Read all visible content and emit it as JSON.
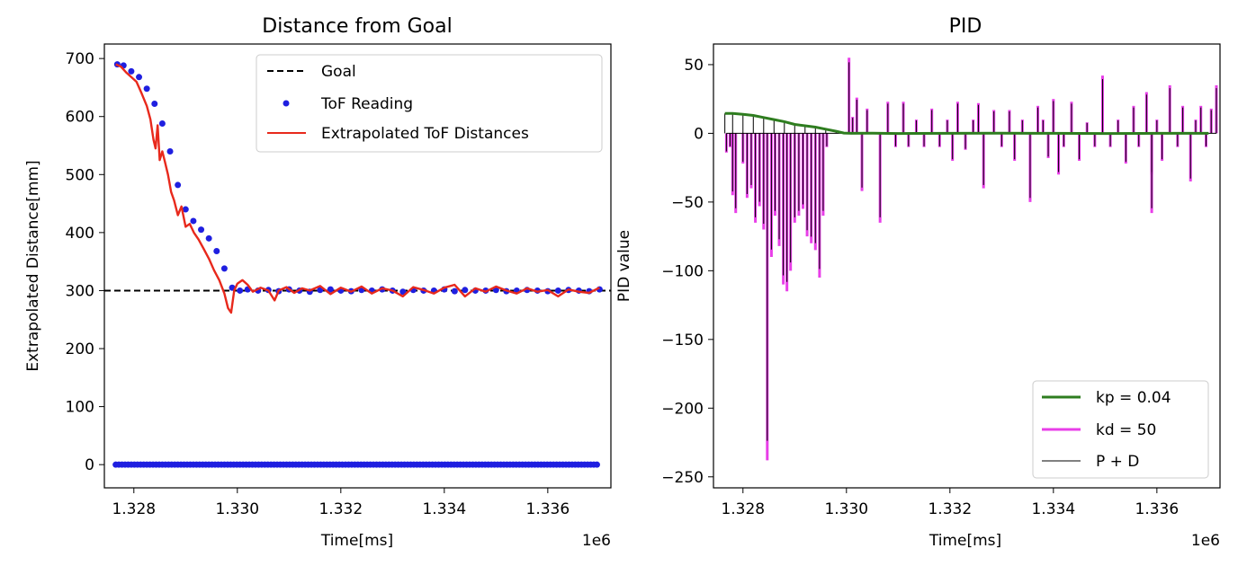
{
  "chart_data": [
    {
      "type": "line",
      "title": "Distance from Goal",
      "xlabel": "Time[ms]",
      "ylabel": "Extrapolated Distance[mm]",
      "x_offset_label": "1e6",
      "xlim": [
        1.32743,
        1.33722
      ],
      "ylim": [
        -40,
        725
      ],
      "xticks": [
        1.328,
        1.33,
        1.332,
        1.334,
        1.336
      ],
      "xtick_labels": [
        "1.328",
        "1.330",
        "1.332",
        "1.334",
        "1.336"
      ],
      "yticks": [
        0,
        100,
        200,
        300,
        400,
        500,
        600,
        700
      ],
      "ytick_labels": [
        "0",
        "100",
        "200",
        "300",
        "400",
        "500",
        "600",
        "700"
      ],
      "grid": false,
      "legend_position": "top-right",
      "goal": 300,
      "tof_zero_range": [
        1.32765,
        1.337
      ],
      "series": [
        {
          "name": "Goal",
          "style": "dashed",
          "color": "#000000",
          "x": [
            1.32743,
            1.33722
          ],
          "y": [
            300,
            300
          ]
        },
        {
          "name": "ToF Reading",
          "style": "scatter",
          "color": "#1f1fe0",
          "x": [
            1.32768,
            1.3278,
            1.32795,
            1.3281,
            1.32825,
            1.3284,
            1.32855,
            1.3287,
            1.32885,
            1.329,
            1.32915,
            1.3293,
            1.32945,
            1.3296,
            1.32975,
            1.3299,
            1.33005,
            1.3302,
            1.3304,
            1.3306,
            1.3308,
            1.331,
            1.3312,
            1.3314,
            1.3316,
            1.3318,
            1.332,
            1.3322,
            1.3324,
            1.3326,
            1.3328,
            1.333,
            1.3332,
            1.3334,
            1.3336,
            1.3338,
            1.334,
            1.3342,
            1.3344,
            1.3346,
            1.3348,
            1.335,
            1.3352,
            1.3354,
            1.3356,
            1.3358,
            1.336,
            1.3362,
            1.3364,
            1.3366,
            1.3368,
            1.337
          ],
          "y": [
            690,
            688,
            678,
            668,
            648,
            622,
            588,
            540,
            482,
            440,
            420,
            405,
            390,
            368,
            338,
            305,
            300,
            302,
            300,
            301,
            299,
            302,
            300,
            298,
            301,
            302,
            300,
            299,
            301,
            300,
            302,
            300,
            298,
            301,
            300,
            300,
            302,
            299,
            301,
            300,
            300,
            301,
            299,
            300,
            301,
            300,
            299,
            300,
            301,
            300,
            299,
            302
          ]
        },
        {
          "name": "Extrapolated ToF Distances",
          "style": "line",
          "color": "#e8291c",
          "x": [
            1.32765,
            1.32775,
            1.32785,
            1.32795,
            1.32805,
            1.32815,
            1.32825,
            1.32832,
            1.32838,
            1.32842,
            1.32846,
            1.3285,
            1.32855,
            1.3286,
            1.32866,
            1.32872,
            1.32878,
            1.32885,
            1.32892,
            1.329,
            1.32908,
            1.32916,
            1.32925,
            1.32935,
            1.32945,
            1.32955,
            1.32965,
            1.32975,
            1.32982,
            1.32988,
            1.32994,
            1.33,
            1.3301,
            1.3302,
            1.3303,
            1.33045,
            1.3306,
            1.33072,
            1.3308,
            1.33095,
            1.3311,
            1.33125,
            1.3314,
            1.3316,
            1.3318,
            1.332,
            1.3322,
            1.3324,
            1.3326,
            1.3328,
            1.333,
            1.3332,
            1.3334,
            1.3336,
            1.3338,
            1.334,
            1.3342,
            1.3344,
            1.3346,
            1.3348,
            1.335,
            1.3352,
            1.3354,
            1.3356,
            1.3358,
            1.336,
            1.3362,
            1.3364,
            1.3366,
            1.3368,
            1.337
          ],
          "y": [
            690,
            686,
            676,
            668,
            660,
            640,
            618,
            595,
            560,
            545,
            585,
            525,
            540,
            522,
            500,
            470,
            455,
            430,
            445,
            410,
            415,
            400,
            388,
            372,
            355,
            335,
            318,
            295,
            270,
            262,
            300,
            312,
            318,
            310,
            298,
            305,
            300,
            283,
            300,
            306,
            296,
            304,
            300,
            308,
            294,
            305,
            298,
            307,
            295,
            304,
            300,
            290,
            306,
            301,
            295,
            305,
            310,
            290,
            304,
            298,
            307,
            300,
            295,
            304,
            298,
            301,
            290,
            302,
            298,
            296,
            305
          ]
        }
      ]
    },
    {
      "type": "line",
      "title": "PID",
      "xlabel": "Time[ms]",
      "ylabel": "PID value",
      "x_offset_label": "1e6",
      "xlim": [
        1.32743,
        1.33722
      ],
      "ylim": [
        -258,
        65
      ],
      "xticks": [
        1.328,
        1.33,
        1.332,
        1.334,
        1.336
      ],
      "xtick_labels": [
        "1.328",
        "1.330",
        "1.332",
        "1.334",
        "1.336"
      ],
      "yticks": [
        50,
        0,
        -50,
        -100,
        -150,
        -200,
        -250
      ],
      "ytick_labels": [
        "50",
        "0",
        "−50",
        "−100",
        "−150",
        "−200",
        "−250"
      ],
      "grid": false,
      "legend_position": "bottom-right",
      "series": [
        {
          "name": "kp = 0.04",
          "color": "#2e7d1f",
          "x": [
            1.32765,
            1.3278,
            1.328,
            1.3282,
            1.3284,
            1.3286,
            1.3288,
            1.329,
            1.3292,
            1.3294,
            1.3296,
            1.3298,
            1.32995,
            1.3301,
            1.3305,
            1.331,
            1.332,
            1.333,
            1.334,
            1.335,
            1.336,
            1.337
          ],
          "y": [
            14.5,
            14.5,
            13.8,
            13.0,
            11.5,
            10.0,
            8.5,
            6.5,
            5.5,
            4.5,
            3.0,
            1.5,
            0.2,
            0.0,
            0.1,
            -0.1,
            0.0,
            0.1,
            0.0,
            -0.1,
            0.0,
            0.0
          ]
        },
        {
          "name": "kd = 50",
          "color": "#e83ee8",
          "spikes": [
            {
              "x": 1.32768,
              "y": -14
            },
            {
              "x": 1.32775,
              "y": -10
            },
            {
              "x": 1.3278,
              "y": -45
            },
            {
              "x": 1.32786,
              "y": -58
            },
            {
              "x": 1.328,
              "y": -22
            },
            {
              "x": 1.32808,
              "y": -47
            },
            {
              "x": 1.32816,
              "y": -40
            },
            {
              "x": 1.32824,
              "y": -65
            },
            {
              "x": 1.32832,
              "y": -53
            },
            {
              "x": 1.3284,
              "y": -70
            },
            {
              "x": 1.32847,
              "y": -238
            },
            {
              "x": 1.32855,
              "y": -90
            },
            {
              "x": 1.32862,
              "y": -60
            },
            {
              "x": 1.3287,
              "y": -82
            },
            {
              "x": 1.32878,
              "y": -110
            },
            {
              "x": 1.32885,
              "y": -115
            },
            {
              "x": 1.32892,
              "y": -100
            },
            {
              "x": 1.329,
              "y": -65
            },
            {
              "x": 1.32908,
              "y": -60
            },
            {
              "x": 1.32916,
              "y": -55
            },
            {
              "x": 1.32924,
              "y": -75
            },
            {
              "x": 1.32932,
              "y": -80
            },
            {
              "x": 1.3294,
              "y": -85
            },
            {
              "x": 1.32948,
              "y": -105
            },
            {
              "x": 1.32955,
              "y": -60
            },
            {
              "x": 1.32962,
              "y": -10
            },
            {
              "x": 1.33005,
              "y": 55
            },
            {
              "x": 1.33012,
              "y": 12
            },
            {
              "x": 1.3302,
              "y": 26
            },
            {
              "x": 1.3303,
              "y": -42
            },
            {
              "x": 1.3304,
              "y": 18
            },
            {
              "x": 1.33055,
              "y": 0
            },
            {
              "x": 1.33065,
              "y": -65
            },
            {
              "x": 1.3308,
              "y": 23
            },
            {
              "x": 1.33095,
              "y": -10
            },
            {
              "x": 1.3311,
              "y": 23
            },
            {
              "x": 1.3312,
              "y": -10
            },
            {
              "x": 1.33135,
              "y": 10
            },
            {
              "x": 1.3315,
              "y": -10
            },
            {
              "x": 1.33165,
              "y": 18
            },
            {
              "x": 1.3318,
              "y": -10
            },
            {
              "x": 1.33195,
              "y": 10
            },
            {
              "x": 1.33205,
              "y": -20
            },
            {
              "x": 1.33215,
              "y": 23
            },
            {
              "x": 1.3323,
              "y": -12
            },
            {
              "x": 1.33245,
              "y": 10
            },
            {
              "x": 1.33255,
              "y": 22
            },
            {
              "x": 1.33265,
              "y": -40
            },
            {
              "x": 1.33285,
              "y": 17
            },
            {
              "x": 1.333,
              "y": -10
            },
            {
              "x": 1.33315,
              "y": 17
            },
            {
              "x": 1.33325,
              "y": -20
            },
            {
              "x": 1.3334,
              "y": 10
            },
            {
              "x": 1.33355,
              "y": -50
            },
            {
              "x": 1.3337,
              "y": 20
            },
            {
              "x": 1.3338,
              "y": 10
            },
            {
              "x": 1.3339,
              "y": -18
            },
            {
              "x": 1.334,
              "y": 25
            },
            {
              "x": 1.3341,
              "y": -30
            },
            {
              "x": 1.3342,
              "y": -10
            },
            {
              "x": 1.33435,
              "y": 23
            },
            {
              "x": 1.3345,
              "y": -20
            },
            {
              "x": 1.33465,
              "y": 8
            },
            {
              "x": 1.3348,
              "y": -10
            },
            {
              "x": 1.33495,
              "y": 42
            },
            {
              "x": 1.3351,
              "y": -10
            },
            {
              "x": 1.33525,
              "y": 10
            },
            {
              "x": 1.3354,
              "y": -22
            },
            {
              "x": 1.33555,
              "y": 20
            },
            {
              "x": 1.33565,
              "y": -10
            },
            {
              "x": 1.3358,
              "y": 30
            },
            {
              "x": 1.3359,
              "y": -30
            },
            {
              "x": 1.336,
              "y": 10
            },
            {
              "x": 1.3361,
              "y": -20
            },
            {
              "x": 1.33625,
              "y": 35
            },
            {
              "x": 1.3364,
              "y": -10
            },
            {
              "x": 1.3365,
              "y": 20
            },
            {
              "x": 1.33665,
              "y": -35
            },
            {
              "x": 1.33675,
              "y": 10
            },
            {
              "x": 1.33685,
              "y": 20
            },
            {
              "x": 1.33695,
              "y": -10
            },
            {
              "x": 1.33705,
              "y": 18
            },
            {
              "x": 1.33715,
              "y": 35
            },
            {
              "x": 1.3359,
              "y": -58
            }
          ]
        },
        {
          "name": "P + D",
          "color": "#000000"
        }
      ]
    }
  ]
}
